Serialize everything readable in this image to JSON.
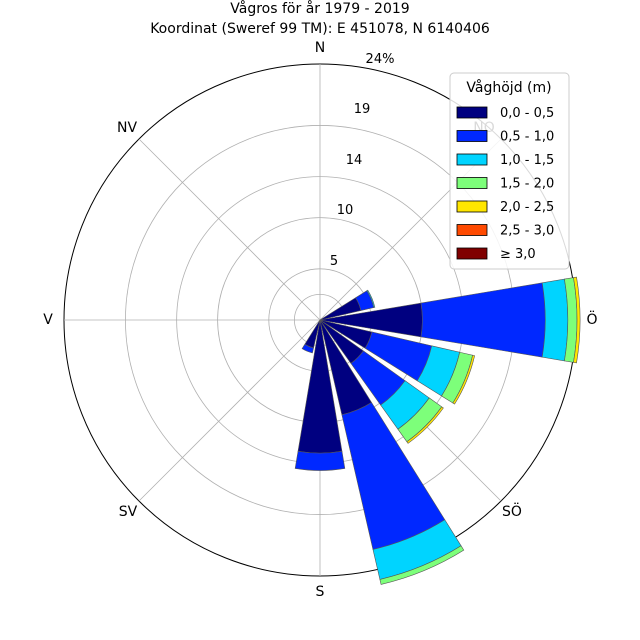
{
  "chart_data": {
    "type": "windrose",
    "title_line1": "Vågros för år 1979 - 2019",
    "title_line2": "Koordinat (Sweref 99 TM): E 451078, N 6140406",
    "directions": [
      "N",
      "NO",
      "Ö",
      "SÖ",
      "S",
      "SV",
      "V",
      "NV"
    ],
    "direction_label_rings": [
      "N",
      "NV",
      "V",
      "SV",
      "S",
      "SÖ",
      "Ö"
    ],
    "ring_values": [
      5,
      10,
      14,
      19
    ],
    "max_label": "24%",
    "rmax": 25,
    "legend": {
      "title": "Våghöjd (m)",
      "placement": "top-right",
      "entries": [
        {
          "label": "0,0 - 0,5",
          "color": "#000080"
        },
        {
          "label": "0,5 - 1,0",
          "color": "#0028ff"
        },
        {
          "label": "1,0 - 1,5",
          "color": "#00d4ff"
        },
        {
          "label": "1,5 - 2,0",
          "color": "#7dff7a"
        },
        {
          "label": "2,0 - 2,5",
          "color": "#ffe600"
        },
        {
          "label": "2,5 - 3,0",
          "color": "#ff4a00"
        },
        {
          "label": "≥ 3,0",
          "color": "#800000"
        }
      ]
    },
    "sectors": [
      {
        "direction_deg": 67.5,
        "cumulative": [
          4.1,
          5.4,
          5.5
        ]
      },
      {
        "direction_deg": 90,
        "cumulative": [
          10,
          22,
          24.2,
          25.1,
          25.4
        ]
      },
      {
        "direction_deg": 112.5,
        "cumulative": [
          5.2,
          11.2,
          14,
          15.3,
          15.5
        ]
      },
      {
        "direction_deg": 135,
        "cumulative": [
          5.2,
          10.2,
          13.1,
          14.6,
          14.8
        ]
      },
      {
        "direction_deg": 157.5,
        "cumulative": [
          9.5,
          23,
          26,
          26.5
        ]
      },
      {
        "direction_deg": 180,
        "cumulative": [
          13,
          14.7
        ]
      },
      {
        "direction_deg": 202.5,
        "cumulative": [
          2.8,
          3.3
        ]
      }
    ]
  }
}
